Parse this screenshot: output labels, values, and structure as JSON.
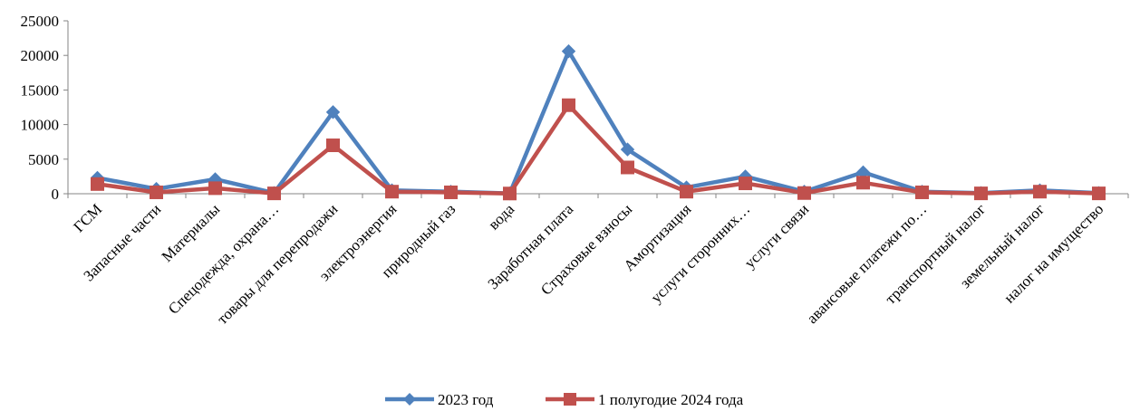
{
  "chart_data": {
    "type": "line",
    "title": "",
    "xlabel": "",
    "ylabel": "",
    "ylim": [
      0,
      25000
    ],
    "yticks": [
      0,
      5000,
      10000,
      15000,
      20000,
      25000
    ],
    "grid": false,
    "legend_position": "bottom",
    "categories": [
      "ГСМ",
      "Запасные части",
      "Материалы",
      "Спецодежда, охрана…",
      "товары для перепродажи",
      "электроэнергия",
      "природный газ",
      "вода",
      "Заработная плата",
      "Страховые взносы",
      "Амортизация",
      "услуги сторонних…",
      "услуги связи",
      "",
      "авансовые платежи по…",
      "транспортный налог",
      "земельный налог",
      "налог на имущество"
    ],
    "series": [
      {
        "name": "2023 год",
        "color": "#4F81BD",
        "marker": "diamond",
        "values": [
          2300,
          700,
          2100,
          100,
          11800,
          500,
          300,
          50,
          20600,
          6400,
          900,
          2500,
          300,
          3100,
          300,
          100,
          500,
          100
        ]
      },
      {
        "name": "1 полугодие 2024 года",
        "color": "#C0504D",
        "marker": "square",
        "values": [
          1400,
          200,
          800,
          50,
          7000,
          300,
          200,
          30,
          12800,
          3800,
          300,
          1500,
          100,
          1600,
          200,
          50,
          300,
          50
        ]
      }
    ]
  }
}
